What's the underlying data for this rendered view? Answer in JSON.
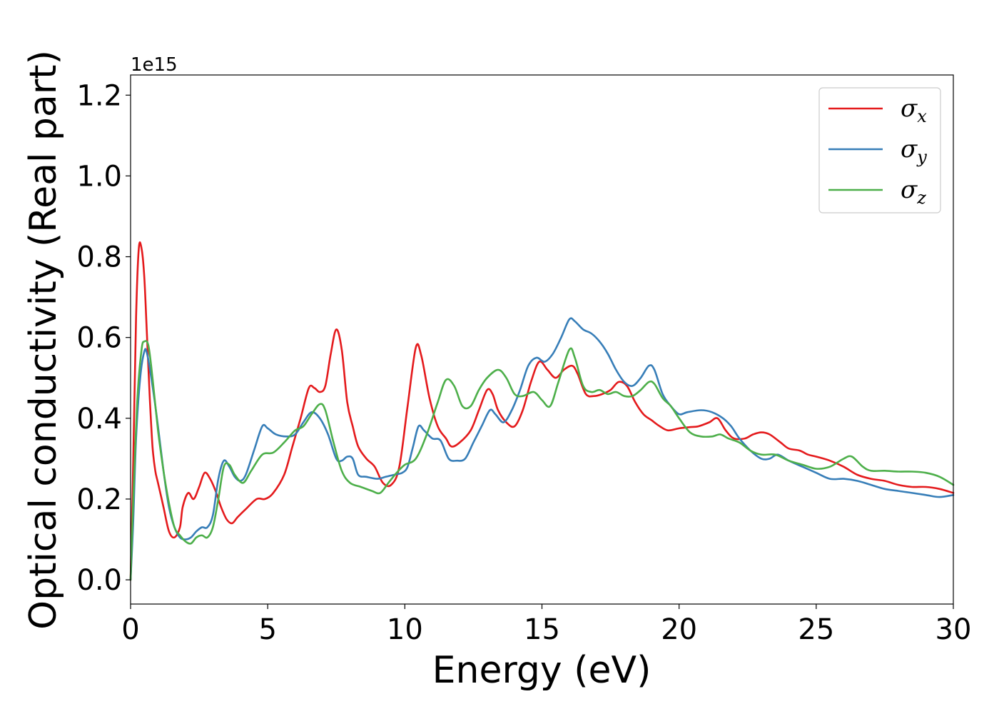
{
  "chart_data": {
    "type": "line",
    "xlabel": "Energy (eV)",
    "ylabel": "Optical conductivity (Real part)",
    "y_offset_label": "1e15",
    "xlim": [
      0,
      30
    ],
    "ylim": [
      -0.06,
      1.25
    ],
    "x_ticks": [
      0,
      5,
      10,
      15,
      20,
      25,
      30
    ],
    "x_tick_labels": [
      "0",
      "5",
      "10",
      "15",
      "20",
      "25",
      "30"
    ],
    "y_ticks": [
      0.0,
      0.2,
      0.4,
      0.6,
      0.8,
      1.0,
      1.2
    ],
    "y_tick_labels": [
      "0.0",
      "0.2",
      "0.4",
      "0.6",
      "0.8",
      "1.0",
      "1.2"
    ],
    "grid": false,
    "legend_position": "top-right",
    "series": [
      {
        "name": "σx",
        "symbol": "σ",
        "subscript": "x",
        "color": "#e41a1c",
        "points": [
          [
            0,
            0
          ],
          [
            0.1,
            0.3
          ],
          [
            0.2,
            0.65
          ],
          [
            0.3,
            0.82
          ],
          [
            0.4,
            0.82
          ],
          [
            0.5,
            0.75
          ],
          [
            0.6,
            0.6
          ],
          [
            0.7,
            0.45
          ],
          [
            0.8,
            0.33
          ],
          [
            0.9,
            0.27
          ],
          [
            1.0,
            0.24
          ],
          [
            1.2,
            0.18
          ],
          [
            1.4,
            0.12
          ],
          [
            1.6,
            0.105
          ],
          [
            1.8,
            0.13
          ],
          [
            1.9,
            0.18
          ],
          [
            2.1,
            0.215
          ],
          [
            2.3,
            0.2
          ],
          [
            2.5,
            0.23
          ],
          [
            2.7,
            0.265
          ],
          [
            2.9,
            0.25
          ],
          [
            3.1,
            0.22
          ],
          [
            3.3,
            0.18
          ],
          [
            3.5,
            0.15
          ],
          [
            3.7,
            0.14
          ],
          [
            3.9,
            0.155
          ],
          [
            4.2,
            0.175
          ],
          [
            4.6,
            0.2
          ],
          [
            4.9,
            0.2
          ],
          [
            5.2,
            0.215
          ],
          [
            5.6,
            0.26
          ],
          [
            5.9,
            0.33
          ],
          [
            6.2,
            0.4
          ],
          [
            6.5,
            0.475
          ],
          [
            6.7,
            0.475
          ],
          [
            6.9,
            0.465
          ],
          [
            7.1,
            0.48
          ],
          [
            7.3,
            0.56
          ],
          [
            7.5,
            0.62
          ],
          [
            7.7,
            0.57
          ],
          [
            7.9,
            0.44
          ],
          [
            8.1,
            0.38
          ],
          [
            8.3,
            0.33
          ],
          [
            8.6,
            0.3
          ],
          [
            8.9,
            0.28
          ],
          [
            9.2,
            0.24
          ],
          [
            9.5,
            0.235
          ],
          [
            9.8,
            0.28
          ],
          [
            10.1,
            0.43
          ],
          [
            10.4,
            0.575
          ],
          [
            10.6,
            0.555
          ],
          [
            10.9,
            0.45
          ],
          [
            11.2,
            0.38
          ],
          [
            11.5,
            0.35
          ],
          [
            11.7,
            0.33
          ],
          [
            12.0,
            0.34
          ],
          [
            12.4,
            0.37
          ],
          [
            12.7,
            0.42
          ],
          [
            13.0,
            0.47
          ],
          [
            13.2,
            0.46
          ],
          [
            13.4,
            0.42
          ],
          [
            13.7,
            0.39
          ],
          [
            14.0,
            0.38
          ],
          [
            14.3,
            0.42
          ],
          [
            14.6,
            0.49
          ],
          [
            14.9,
            0.54
          ],
          [
            15.2,
            0.52
          ],
          [
            15.5,
            0.5
          ],
          [
            15.8,
            0.52
          ],
          [
            16.1,
            0.53
          ],
          [
            16.3,
            0.51
          ],
          [
            16.6,
            0.46
          ],
          [
            16.9,
            0.455
          ],
          [
            17.2,
            0.46
          ],
          [
            17.5,
            0.47
          ],
          [
            17.8,
            0.49
          ],
          [
            18.1,
            0.48
          ],
          [
            18.4,
            0.44
          ],
          [
            18.7,
            0.41
          ],
          [
            19.0,
            0.395
          ],
          [
            19.3,
            0.38
          ],
          [
            19.6,
            0.37
          ],
          [
            20.0,
            0.375
          ],
          [
            20.4,
            0.378
          ],
          [
            20.7,
            0.38
          ],
          [
            21.1,
            0.39
          ],
          [
            21.4,
            0.4
          ],
          [
            21.7,
            0.37
          ],
          [
            22.0,
            0.35
          ],
          [
            22.4,
            0.35
          ],
          [
            22.7,
            0.36
          ],
          [
            23.0,
            0.365
          ],
          [
            23.3,
            0.36
          ],
          [
            23.7,
            0.34
          ],
          [
            24.0,
            0.325
          ],
          [
            24.4,
            0.32
          ],
          [
            24.7,
            0.31
          ],
          [
            25.0,
            0.305
          ],
          [
            25.5,
            0.295
          ],
          [
            26.0,
            0.28
          ],
          [
            26.5,
            0.26
          ],
          [
            27.0,
            0.25
          ],
          [
            27.5,
            0.245
          ],
          [
            28.0,
            0.235
          ],
          [
            28.5,
            0.23
          ],
          [
            29.0,
            0.23
          ],
          [
            29.5,
            0.225
          ],
          [
            30.0,
            0.215
          ]
        ]
      },
      {
        "name": "σy",
        "symbol": "σ",
        "subscript": "y",
        "color": "#377eb8",
        "points": [
          [
            0,
            0
          ],
          [
            0.1,
            0.15
          ],
          [
            0.2,
            0.35
          ],
          [
            0.35,
            0.5
          ],
          [
            0.5,
            0.565
          ],
          [
            0.6,
            0.56
          ],
          [
            0.8,
            0.48
          ],
          [
            1.0,
            0.38
          ],
          [
            1.2,
            0.27
          ],
          [
            1.4,
            0.18
          ],
          [
            1.6,
            0.13
          ],
          [
            1.8,
            0.105
          ],
          [
            2.0,
            0.1
          ],
          [
            2.2,
            0.105
          ],
          [
            2.4,
            0.12
          ],
          [
            2.6,
            0.13
          ],
          [
            2.8,
            0.13
          ],
          [
            3.0,
            0.16
          ],
          [
            3.2,
            0.25
          ],
          [
            3.4,
            0.295
          ],
          [
            3.6,
            0.28
          ],
          [
            3.8,
            0.255
          ],
          [
            4.0,
            0.245
          ],
          [
            4.2,
            0.26
          ],
          [
            4.5,
            0.32
          ],
          [
            4.8,
            0.38
          ],
          [
            5.0,
            0.375
          ],
          [
            5.3,
            0.36
          ],
          [
            5.7,
            0.355
          ],
          [
            6.0,
            0.36
          ],
          [
            6.3,
            0.39
          ],
          [
            6.6,
            0.415
          ],
          [
            6.9,
            0.4
          ],
          [
            7.2,
            0.36
          ],
          [
            7.5,
            0.3
          ],
          [
            7.7,
            0.295
          ],
          [
            7.9,
            0.305
          ],
          [
            8.1,
            0.3
          ],
          [
            8.3,
            0.26
          ],
          [
            8.6,
            0.255
          ],
          [
            9.0,
            0.25
          ],
          [
            9.3,
            0.255
          ],
          [
            9.6,
            0.26
          ],
          [
            9.9,
            0.265
          ],
          [
            10.1,
            0.28
          ],
          [
            10.3,
            0.33
          ],
          [
            10.5,
            0.38
          ],
          [
            10.7,
            0.37
          ],
          [
            11.0,
            0.35
          ],
          [
            11.3,
            0.345
          ],
          [
            11.6,
            0.3
          ],
          [
            11.9,
            0.295
          ],
          [
            12.2,
            0.3
          ],
          [
            12.5,
            0.34
          ],
          [
            12.8,
            0.38
          ],
          [
            13.1,
            0.42
          ],
          [
            13.3,
            0.41
          ],
          [
            13.6,
            0.39
          ],
          [
            13.9,
            0.42
          ],
          [
            14.2,
            0.47
          ],
          [
            14.5,
            0.53
          ],
          [
            14.8,
            0.55
          ],
          [
            15.1,
            0.54
          ],
          [
            15.4,
            0.56
          ],
          [
            15.7,
            0.6
          ],
          [
            16.0,
            0.645
          ],
          [
            16.2,
            0.64
          ],
          [
            16.5,
            0.62
          ],
          [
            16.8,
            0.61
          ],
          [
            17.1,
            0.59
          ],
          [
            17.4,
            0.56
          ],
          [
            17.7,
            0.52
          ],
          [
            18.0,
            0.49
          ],
          [
            18.3,
            0.48
          ],
          [
            18.6,
            0.5
          ],
          [
            18.9,
            0.53
          ],
          [
            19.1,
            0.52
          ],
          [
            19.4,
            0.46
          ],
          [
            19.7,
            0.43
          ],
          [
            20.0,
            0.41
          ],
          [
            20.3,
            0.415
          ],
          [
            20.8,
            0.42
          ],
          [
            21.2,
            0.415
          ],
          [
            21.6,
            0.4
          ],
          [
            21.9,
            0.38
          ],
          [
            22.2,
            0.35
          ],
          [
            22.6,
            0.32
          ],
          [
            23.0,
            0.3
          ],
          [
            23.3,
            0.3
          ],
          [
            23.6,
            0.31
          ],
          [
            24.0,
            0.295
          ],
          [
            24.5,
            0.28
          ],
          [
            25.0,
            0.265
          ],
          [
            25.5,
            0.25
          ],
          [
            26.0,
            0.25
          ],
          [
            26.5,
            0.245
          ],
          [
            27.0,
            0.235
          ],
          [
            27.5,
            0.225
          ],
          [
            28.0,
            0.22
          ],
          [
            28.5,
            0.215
          ],
          [
            29.0,
            0.21
          ],
          [
            29.5,
            0.205
          ],
          [
            30.0,
            0.21
          ]
        ]
      },
      {
        "name": "σz",
        "symbol": "σ",
        "subscript": "z",
        "color": "#4daf4a",
        "points": [
          [
            0,
            0
          ],
          [
            0.1,
            0.2
          ],
          [
            0.25,
            0.45
          ],
          [
            0.4,
            0.57
          ],
          [
            0.5,
            0.59
          ],
          [
            0.65,
            0.58
          ],
          [
            0.8,
            0.5
          ],
          [
            1.0,
            0.37
          ],
          [
            1.2,
            0.27
          ],
          [
            1.4,
            0.19
          ],
          [
            1.6,
            0.13
          ],
          [
            1.8,
            0.11
          ],
          [
            2.0,
            0.095
          ],
          [
            2.2,
            0.09
          ],
          [
            2.4,
            0.105
          ],
          [
            2.6,
            0.11
          ],
          [
            2.8,
            0.105
          ],
          [
            3.0,
            0.13
          ],
          [
            3.2,
            0.2
          ],
          [
            3.4,
            0.28
          ],
          [
            3.6,
            0.285
          ],
          [
            3.8,
            0.26
          ],
          [
            4.1,
            0.24
          ],
          [
            4.4,
            0.27
          ],
          [
            4.8,
            0.31
          ],
          [
            5.2,
            0.315
          ],
          [
            5.6,
            0.34
          ],
          [
            6.0,
            0.37
          ],
          [
            6.3,
            0.38
          ],
          [
            6.6,
            0.41
          ],
          [
            6.9,
            0.435
          ],
          [
            7.1,
            0.42
          ],
          [
            7.4,
            0.34
          ],
          [
            7.7,
            0.27
          ],
          [
            8.0,
            0.24
          ],
          [
            8.4,
            0.23
          ],
          [
            8.8,
            0.22
          ],
          [
            9.1,
            0.215
          ],
          [
            9.4,
            0.24
          ],
          [
            9.7,
            0.265
          ],
          [
            10.0,
            0.285
          ],
          [
            10.4,
            0.3
          ],
          [
            10.8,
            0.36
          ],
          [
            11.2,
            0.44
          ],
          [
            11.5,
            0.495
          ],
          [
            11.8,
            0.48
          ],
          [
            12.1,
            0.43
          ],
          [
            12.4,
            0.43
          ],
          [
            12.7,
            0.47
          ],
          [
            13.0,
            0.5
          ],
          [
            13.4,
            0.52
          ],
          [
            13.7,
            0.5
          ],
          [
            14.0,
            0.46
          ],
          [
            14.3,
            0.455
          ],
          [
            14.7,
            0.465
          ],
          [
            15.0,
            0.445
          ],
          [
            15.3,
            0.43
          ],
          [
            15.6,
            0.49
          ],
          [
            16.0,
            0.57
          ],
          [
            16.2,
            0.55
          ],
          [
            16.5,
            0.48
          ],
          [
            16.8,
            0.465
          ],
          [
            17.1,
            0.47
          ],
          [
            17.4,
            0.46
          ],
          [
            17.7,
            0.465
          ],
          [
            18.0,
            0.455
          ],
          [
            18.3,
            0.455
          ],
          [
            18.6,
            0.47
          ],
          [
            18.9,
            0.49
          ],
          [
            19.1,
            0.485
          ],
          [
            19.4,
            0.45
          ],
          [
            19.7,
            0.43
          ],
          [
            20.0,
            0.4
          ],
          [
            20.4,
            0.365
          ],
          [
            20.8,
            0.355
          ],
          [
            21.2,
            0.355
          ],
          [
            21.5,
            0.36
          ],
          [
            21.8,
            0.35
          ],
          [
            22.2,
            0.34
          ],
          [
            22.6,
            0.32
          ],
          [
            23.0,
            0.31
          ],
          [
            23.5,
            0.31
          ],
          [
            24.0,
            0.295
          ],
          [
            24.5,
            0.285
          ],
          [
            25.0,
            0.275
          ],
          [
            25.5,
            0.28
          ],
          [
            26.0,
            0.3
          ],
          [
            26.3,
            0.305
          ],
          [
            26.7,
            0.28
          ],
          [
            27.0,
            0.27
          ],
          [
            27.5,
            0.27
          ],
          [
            28.0,
            0.268
          ],
          [
            28.5,
            0.268
          ],
          [
            29.0,
            0.265
          ],
          [
            29.5,
            0.255
          ],
          [
            30.0,
            0.235
          ]
        ]
      }
    ]
  }
}
